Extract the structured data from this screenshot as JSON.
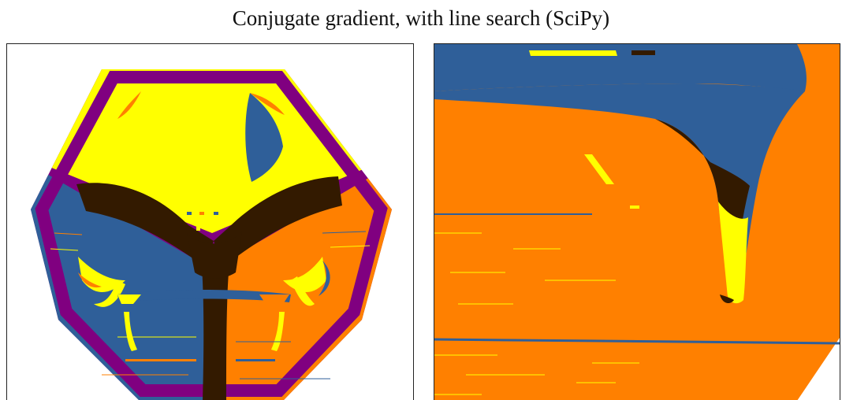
{
  "figure": {
    "title": "Conjugate gradient, with line search (SciPy)"
  },
  "colors": {
    "purple": "#800080",
    "yellow": "#ffff00",
    "dark_brown": "#331a00",
    "blue": "#2f5f99",
    "orange": "#ff8000",
    "white": "#ffffff"
  },
  "panels": [
    {
      "id": "left",
      "content": "full hexagonal basin-of-attraction map"
    },
    {
      "id": "right",
      "content": "zoomed detail of basin boundary"
    }
  ]
}
